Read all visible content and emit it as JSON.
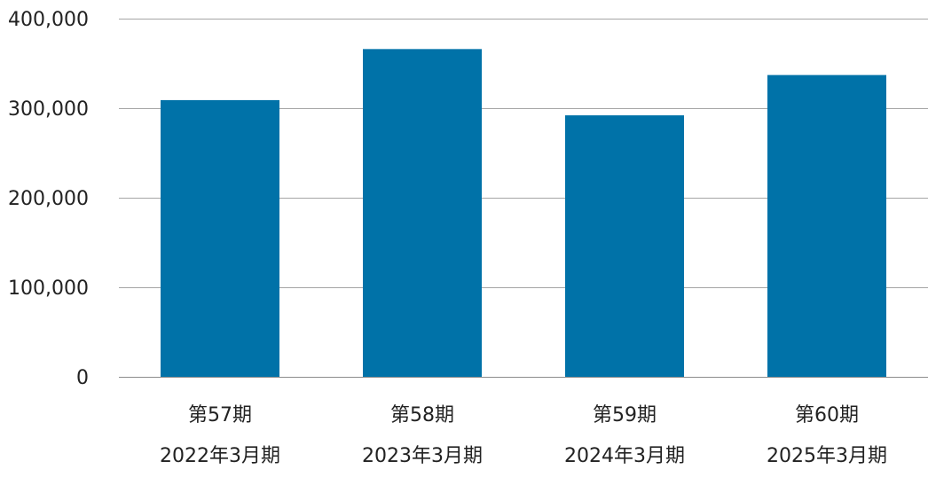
{
  "chart_data": {
    "type": "bar",
    "categories": [
      [
        "第57期",
        "2022年3月期"
      ],
      [
        "第58期",
        "2023年3月期"
      ],
      [
        "第59期",
        "2024年3月期"
      ],
      [
        "第60期",
        "2025年3月期"
      ]
    ],
    "values": [
      309000,
      366000,
      292000,
      337000
    ],
    "yticks": [
      0,
      100000,
      200000,
      300000,
      400000
    ],
    "ytick_labels": [
      "0",
      "100,000",
      "200,000",
      "300,000",
      "400,000"
    ],
    "ylim": [
      0,
      400000
    ],
    "grid": true,
    "legend": "none",
    "bar_color": "#0072a8",
    "grid_color": "#a6a6a6"
  }
}
